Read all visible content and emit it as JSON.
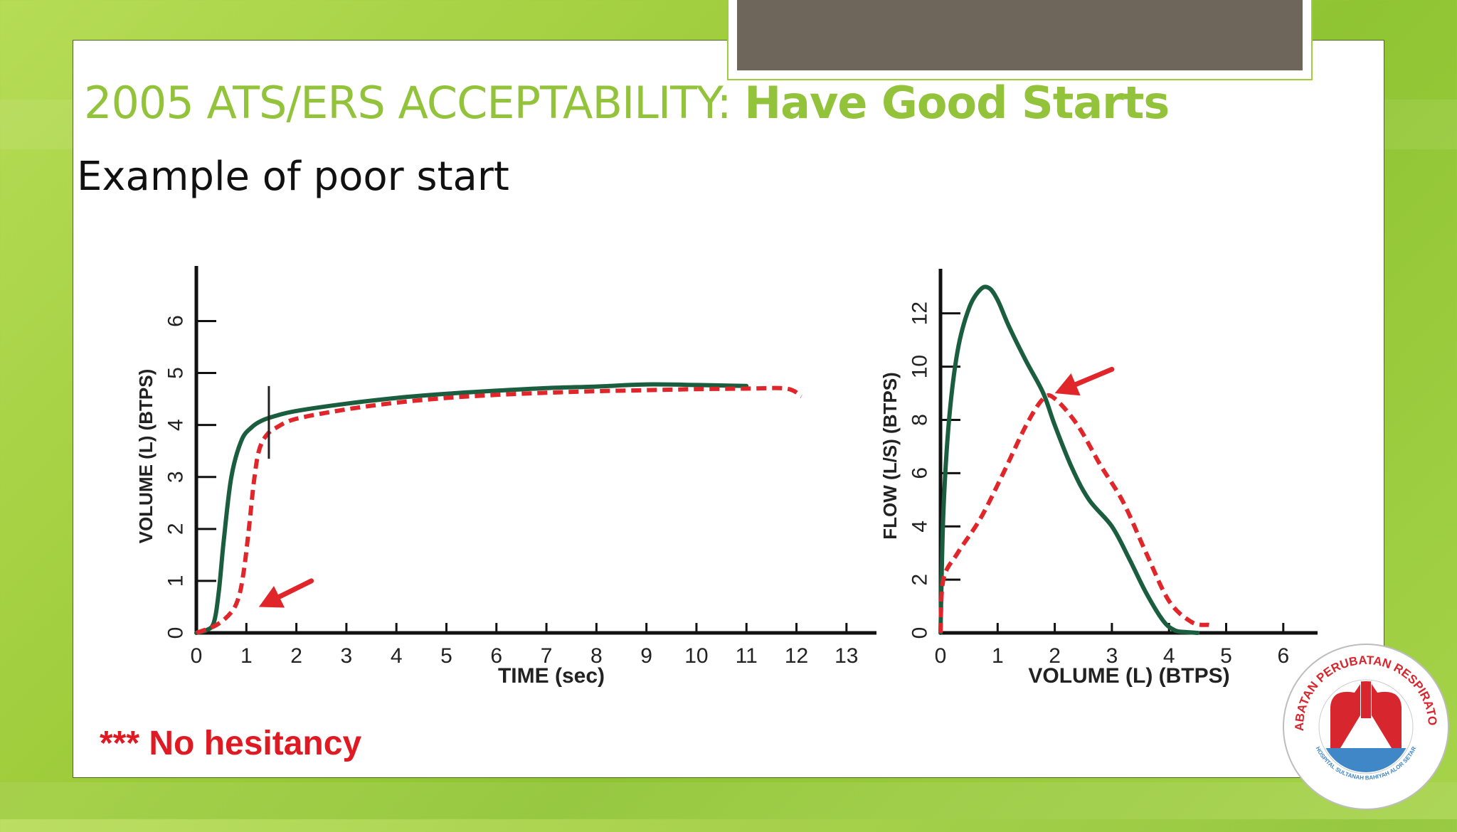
{
  "slide": {
    "title_prefix": "2005 ATS/ERS ACCEPTABILITY: ",
    "title_bold": "Have Good Starts",
    "subtitle": "Example of poor start",
    "footnote": "*** No hesitancy"
  },
  "logo": {
    "text": "JABATAN PERUBATAN RESPIRATORI",
    "subtext": "HOSPITAL SULTANAH BAHIYAH ALOR SETAR",
    "colors": {
      "red": "#d7262e",
      "blue": "#3f87c7"
    }
  },
  "colors": {
    "good": "#1b5e3f",
    "poor": "#e0262b",
    "arrow": "#e0262b",
    "title": "#92c33a"
  },
  "chart_data": [
    {
      "type": "line",
      "xlabel": "TIME (sec)",
      "ylabel": "VOLUME (L) (BTPS)",
      "xlim": [
        0,
        13.6
      ],
      "ylim": [
        0,
        6.8
      ],
      "xticks": [
        0,
        1,
        2,
        3,
        4,
        5,
        6,
        7,
        8,
        9,
        10,
        11,
        12,
        13
      ],
      "yticks": [
        0,
        1,
        2,
        3,
        4,
        5,
        6
      ],
      "grid": false,
      "series": [
        {
          "style": "solid",
          "color": "#1b5e3f",
          "x": [
            0,
            0.2,
            0.35,
            0.45,
            0.55,
            0.7,
            0.9,
            1.1,
            1.3,
            1.6,
            2.0,
            3.0,
            4.0,
            5.0,
            6.0,
            7.0,
            8.0,
            9.0,
            10.0,
            11.0
          ],
          "y": [
            0,
            0.05,
            0.2,
            0.8,
            1.8,
            3.0,
            3.7,
            3.95,
            4.08,
            4.18,
            4.27,
            4.41,
            4.52,
            4.6,
            4.66,
            4.71,
            4.74,
            4.78,
            4.77,
            4.75
          ]
        },
        {
          "style": "dashed",
          "color": "#e0262b",
          "x": [
            0,
            0.4,
            0.7,
            0.85,
            0.95,
            1.05,
            1.15,
            1.25,
            1.4,
            1.6,
            2.0,
            3.0,
            4.0,
            5.0,
            6.0,
            7.0,
            8.0,
            9.0,
            10.0,
            11.0,
            11.8,
            12.1
          ],
          "y": [
            0,
            0.15,
            0.4,
            0.7,
            1.2,
            2.0,
            2.9,
            3.5,
            3.8,
            3.95,
            4.12,
            4.3,
            4.43,
            4.52,
            4.58,
            4.62,
            4.65,
            4.67,
            4.69,
            4.7,
            4.7,
            4.55
          ]
        }
      ],
      "annotations": [
        {
          "kind": "tick-marker",
          "x": 1.45,
          "y_range": [
            3.35,
            4.75
          ]
        },
        {
          "kind": "arrow",
          "from": [
            2.3,
            1.0
          ],
          "to": [
            1.25,
            0.5
          ]
        }
      ]
    },
    {
      "type": "line",
      "xlabel": "VOLUME (L) (BTPS)",
      "ylabel": "FLOW (L/S) (BTPS)",
      "xlim": [
        0,
        6.6
      ],
      "ylim": [
        0,
        13.3
      ],
      "xticks": [
        0,
        1,
        2,
        3,
        4,
        5,
        6
      ],
      "yticks": [
        0,
        2,
        4,
        6,
        8,
        10,
        12
      ],
      "grid": false,
      "series": [
        {
          "style": "solid",
          "color": "#1b5e3f",
          "x": [
            0,
            0.05,
            0.15,
            0.3,
            0.5,
            0.7,
            0.85,
            1.0,
            1.2,
            1.5,
            1.8,
            2.0,
            2.3,
            2.6,
            3.0,
            3.3,
            3.6,
            3.9,
            4.1,
            4.3,
            4.5
          ],
          "y": [
            0,
            4.5,
            8.0,
            10.6,
            12.2,
            12.9,
            12.95,
            12.5,
            11.5,
            10.2,
            9.0,
            7.8,
            6.2,
            5.0,
            4.0,
            2.8,
            1.5,
            0.45,
            0.1,
            0.03,
            0
          ]
        },
        {
          "style": "dashed",
          "color": "#e0262b",
          "x": [
            0,
            0.05,
            0.3,
            0.7,
            1.1,
            1.5,
            1.8,
            2.0,
            2.4,
            2.8,
            3.2,
            3.6,
            4.0,
            4.4,
            4.7
          ],
          "y": [
            0,
            2.0,
            3.0,
            4.3,
            6.0,
            7.8,
            8.8,
            8.8,
            7.8,
            6.3,
            4.9,
            3.0,
            1.2,
            0.4,
            0.3
          ]
        }
      ],
      "annotations": [
        {
          "kind": "arrow",
          "from": [
            3.0,
            9.9
          ],
          "to": [
            2.0,
            9.0
          ]
        }
      ]
    }
  ]
}
